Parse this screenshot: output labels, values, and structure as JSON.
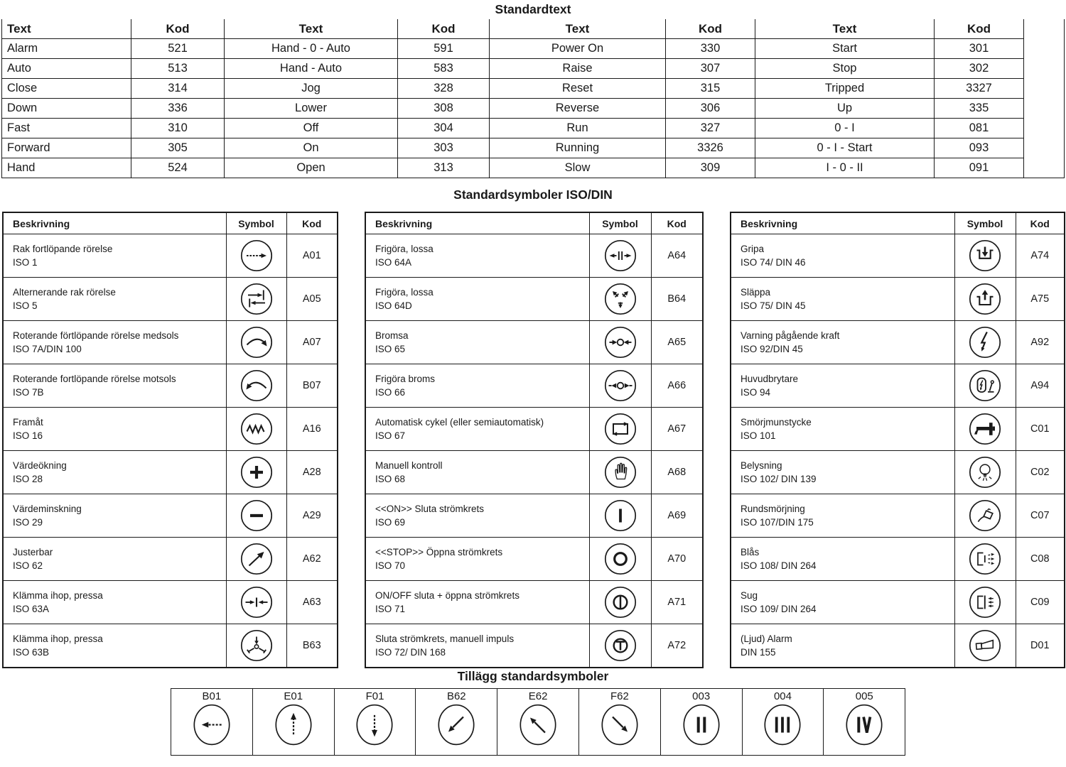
{
  "titles": {
    "standardtext": "Standardtext",
    "symbols": "Standardsymboler ISO/DIN",
    "tillagg": "Tillägg standardsymboler"
  },
  "colors": {
    "text": "#1a1a1a",
    "border": "#1a1a1a",
    "background": "#ffffff"
  },
  "standardtext": {
    "col_headers": [
      "Text",
      "Kod",
      "Text",
      "Kod",
      "Text",
      "Kod",
      "Text",
      "Kod"
    ],
    "rows": [
      [
        "Alarm",
        "521",
        "Hand - 0 - Auto",
        "591",
        "Power On",
        "330",
        "Start",
        "301"
      ],
      [
        "Auto",
        "513",
        "Hand - Auto",
        "583",
        "Raise",
        "307",
        "Stop",
        "302"
      ],
      [
        "Close",
        "314",
        "Jog",
        "328",
        "Reset",
        "315",
        "Tripped",
        "3327"
      ],
      [
        "Down",
        "336",
        "Lower",
        "308",
        "Reverse",
        "306",
        "Up",
        "335"
      ],
      [
        "Fast",
        "310",
        "Off",
        "304",
        "Run",
        "327",
        "0 - I",
        "081"
      ],
      [
        "Forward",
        "305",
        "On",
        "303",
        "Running",
        "3326",
        "0 - I - Start",
        "093"
      ],
      [
        "Hand",
        "524",
        "Open",
        "313",
        "Slow",
        "309",
        "I - 0 - II",
        "091"
      ]
    ]
  },
  "symbol_headers": [
    "Beskrivning",
    "Symbol",
    "Kod"
  ],
  "symbol_tables": [
    {
      "rows": [
        {
          "line1": "Rak fortlöpande rörelse",
          "line2": "ISO 1",
          "icon": "linear-motion-arrow",
          "kod": "A01"
        },
        {
          "line1": "Alternerande rak rörelse",
          "line2": "ISO 5",
          "icon": "alternating-linear-motion",
          "kod": "A05"
        },
        {
          "line1": "Roterande förtlöpande rörelse medsols",
          "line2": "ISO 7A/DIN 100",
          "icon": "rotate-clockwise",
          "kod": "A07"
        },
        {
          "line1": "Roterande fortlöpande rörelse motsols",
          "line2": "ISO 7B",
          "icon": "rotate-counterclockwise",
          "kod": "B07"
        },
        {
          "line1": "Framåt",
          "line2": "ISO 16",
          "icon": "zigzag-forward",
          "kod": "A16"
        },
        {
          "line1": "Värdeökning",
          "line2": "ISO 28",
          "icon": "plus",
          "kod": "A28"
        },
        {
          "line1": "Värdeminskning",
          "line2": "ISO 29",
          "icon": "minus",
          "kod": "A29"
        },
        {
          "line1": "Justerbar",
          "line2": "ISO 62",
          "icon": "arrow-up-right",
          "kod": "A62"
        },
        {
          "line1": "Klämma ihop, pressa",
          "line2": "ISO 63A",
          "icon": "press-together",
          "kod": "A63"
        },
        {
          "line1": "Klämma ihop, pressa",
          "line2": "ISO 63B",
          "icon": "press-three-jaw",
          "kod": "B63"
        }
      ]
    },
    {
      "rows": [
        {
          "line1": "Frigöra, lossa",
          "line2": "ISO 64A",
          "icon": "release-apart",
          "kod": "A64"
        },
        {
          "line1": "Frigöra, lossa",
          "line2": "ISO 64D",
          "icon": "release-three-jaw",
          "kod": "B64"
        },
        {
          "line1": "Bromsa",
          "line2": "ISO 65",
          "icon": "brake-apply",
          "kod": "A65"
        },
        {
          "line1": "Frigöra broms",
          "line2": "ISO 66",
          "icon": "brake-release",
          "kod": "A66"
        },
        {
          "line1": "Automatisk cykel (eller semiautomatisk)",
          "line2": "ISO 67",
          "icon": "auto-cycle",
          "kod": "A67"
        },
        {
          "line1": "Manuell kontroll",
          "line2": "ISO 68",
          "icon": "hand",
          "kod": "A68"
        },
        {
          "line1": "<<ON>> Sluta strömkrets",
          "line2": "ISO 69",
          "icon": "on-bar",
          "kod": "A69"
        },
        {
          "line1": "<<STOP>> Öppna strömkrets",
          "line2": "ISO 70",
          "icon": "off-ring",
          "kod": "A70"
        },
        {
          "line1": "ON/OFF sluta + öppna strömkrets",
          "line2": "ISO 71",
          "icon": "on-off",
          "kod": "A71"
        },
        {
          "line1": "Sluta strömkrets, manuell impuls",
          "line2": "ISO 72/ DIN 168",
          "icon": "impulse-t",
          "kod": "A72"
        }
      ]
    },
    {
      "rows": [
        {
          "line1": "Gripa",
          "line2": "ISO 74/ DIN 46",
          "icon": "grip",
          "kod": "A74"
        },
        {
          "line1": "Släppa",
          "line2": "ISO 75/ DIN 45",
          "icon": "release-grip",
          "kod": "A75"
        },
        {
          "line1": "Varning  pågående kraft",
          "line2": "ISO 92/DIN 45",
          "icon": "lightning",
          "kod": "A92"
        },
        {
          "line1": "Huvudbrytare",
          "line2": "ISO 94",
          "icon": "main-switch",
          "kod": "A94"
        },
        {
          "line1": "Smörjmunstycke",
          "line2": "ISO 101",
          "icon": "grease-nipple",
          "kod": "C01"
        },
        {
          "line1": "Belysning",
          "line2": "ISO 102/ DIN 139",
          "icon": "light-bulb",
          "kod": "C02"
        },
        {
          "line1": "Rundsmörjning",
          "line2": "ISO 107/DIN 175",
          "icon": "oil-can",
          "kod": "C07"
        },
        {
          "line1": "Blås",
          "line2": "ISO 108/ DIN 264",
          "icon": "blow-nozzle",
          "kod": "C08"
        },
        {
          "line1": "Sug",
          "line2": "ISO 109/ DIN 264",
          "icon": "suction-nozzle",
          "kod": "C09"
        },
        {
          "line1": "(Ljud) Alarm",
          "line2": "DIN 155",
          "icon": "horn",
          "kod": "D01"
        }
      ]
    }
  ],
  "tillagg": {
    "items": [
      {
        "kod": "B01",
        "icon": "arrow-left"
      },
      {
        "kod": "E01",
        "icon": "arrow-up"
      },
      {
        "kod": "F01",
        "icon": "arrow-down"
      },
      {
        "kod": "B62",
        "icon": "arrow-down-left"
      },
      {
        "kod": "E62",
        "icon": "arrow-up-left"
      },
      {
        "kod": "F62",
        "icon": "arrow-down-right"
      },
      {
        "kod": "003",
        "icon": "bars-two"
      },
      {
        "kod": "004",
        "icon": "bars-three"
      },
      {
        "kod": "005",
        "icon": "roman-four"
      }
    ]
  }
}
